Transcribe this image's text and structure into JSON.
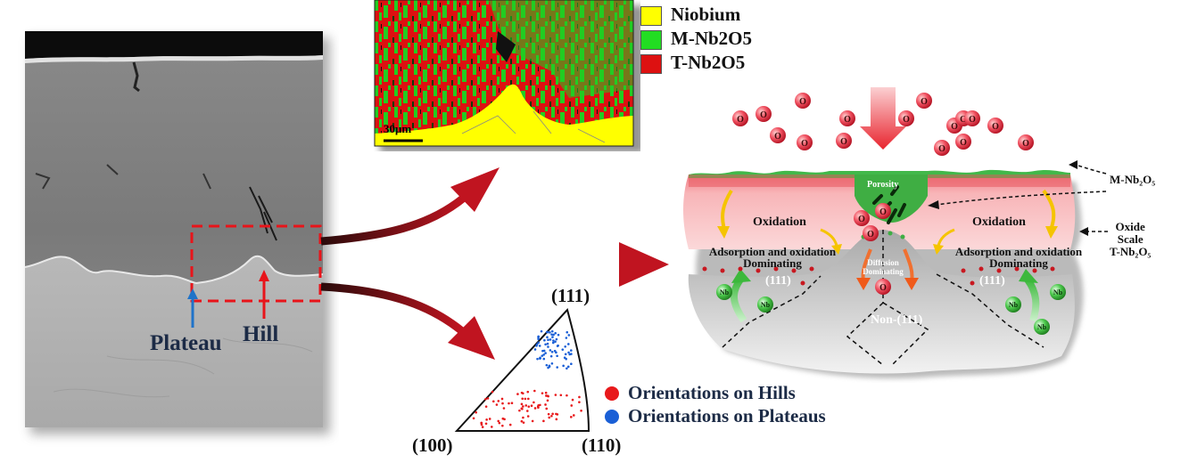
{
  "sem_panel": {
    "plateau_label": "Plateau",
    "hill_label": "Hill"
  },
  "ebsd_map": {
    "scale_bar": "30μm",
    "legend": [
      {
        "name": "Niobium",
        "color": "#ffff00"
      },
      {
        "name": "M-Nb2O5",
        "color": "#22dd22"
      },
      {
        "name": "T-Nb2O5",
        "color": "#dd1111"
      }
    ]
  },
  "ipf": {
    "corner_111": "(111)",
    "corner_100": "(100)",
    "corner_110": "(110)",
    "legend": [
      {
        "name": "Orientations on Hills",
        "color": "#e8191b"
      },
      {
        "name": "Orientations on Plateaus",
        "color": "#1a5fd6"
      }
    ]
  },
  "schematic": {
    "oxygen_symbol": "O",
    "niobium_symbol": "Nb",
    "porosity": "Porosity",
    "oxidation": "Oxidation",
    "adsorption_line1": "Adsorption and oxidation",
    "adsorption_line2": "Dominating",
    "diffusion_line1": "Diffusion",
    "diffusion_line2": "Dominating",
    "grain_111": "(111)",
    "grain_non111": "Non-(111)",
    "callout_m": "M-Nb₂O₅",
    "callout_oxide_line1": "Oxide",
    "callout_oxide_line2": "Scale",
    "callout_oxide_line3": "T-Nb₂O₅"
  },
  "colors": {
    "arrow": "#b0101a",
    "hill_arrow": "#e8141a",
    "plateau_arrow": "#1f73c9",
    "oxide_pink": "#f4a5a8",
    "metal_gray": "#c4c4c4"
  }
}
